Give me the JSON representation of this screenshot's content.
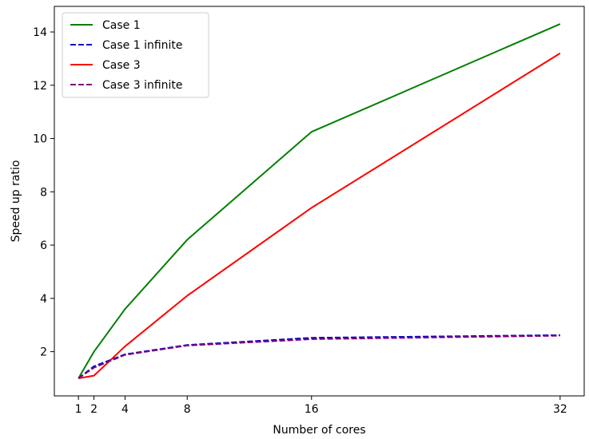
{
  "chart_data": {
    "type": "line",
    "title": "",
    "xlabel": "Number of cores",
    "ylabel": "Speed up ratio",
    "x": [
      1,
      2,
      4,
      8,
      16,
      32
    ],
    "xticks": [
      1,
      2,
      4,
      8,
      16,
      32
    ],
    "yticks": [
      2,
      4,
      6,
      8,
      10,
      12,
      14
    ],
    "xlim": [
      -0.55,
      33.55
    ],
    "ylim": [
      0.34,
      14.96
    ],
    "grid": false,
    "legend_position": "top-left",
    "series": [
      {
        "name": "Case 1",
        "values": [
          1.0,
          2.0,
          3.6,
          6.2,
          10.25,
          14.3
        ],
        "color": "#008000",
        "dash": "solid"
      },
      {
        "name": "Case 1 infinite",
        "values": [
          1.0,
          1.45,
          1.9,
          2.25,
          2.52,
          2.62
        ],
        "color": "#0000cc",
        "dash": "dashed"
      },
      {
        "name": "Case 3",
        "values": [
          1.0,
          1.1,
          2.2,
          4.1,
          7.4,
          13.2
        ],
        "color": "#ff0000",
        "dash": "solid"
      },
      {
        "name": "Case 3 infinite",
        "values": [
          1.0,
          1.4,
          1.88,
          2.23,
          2.47,
          2.6
        ],
        "color": "#800080",
        "dash": "dashed"
      }
    ]
  }
}
